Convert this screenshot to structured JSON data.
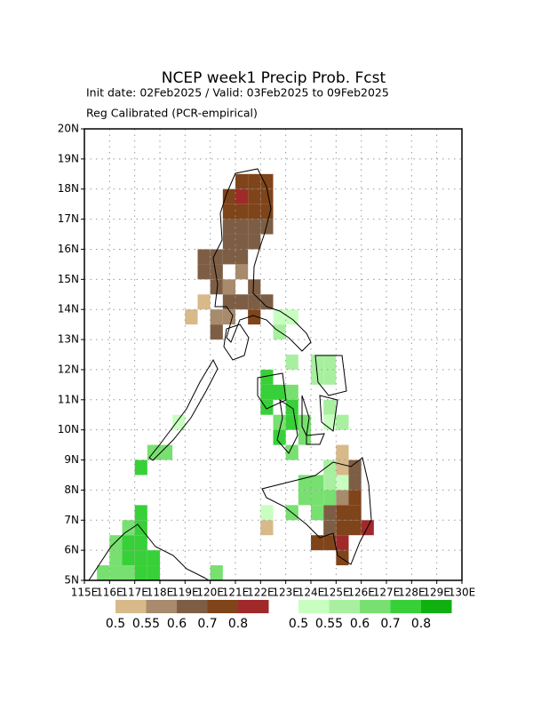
{
  "chart_data": {
    "type": "grid-map",
    "title": "NCEP week1 Precip Prob. Fcst",
    "subtitle": "Init date: 02Feb2025 / Valid: 03Feb2025 to 09Feb2025",
    "note": "Reg Calibrated (PCR-empirical)",
    "xlim": [
      115,
      130
    ],
    "xticks": [
      {
        "value": 115,
        "label": "115E"
      },
      {
        "value": 116,
        "label": "116E"
      },
      {
        "value": 117,
        "label": "117E"
      },
      {
        "value": 118,
        "label": "118E"
      },
      {
        "value": 119,
        "label": "119E"
      },
      {
        "value": 120,
        "label": "120E"
      },
      {
        "value": 121,
        "label": "121E"
      },
      {
        "value": 122,
        "label": "122E"
      },
      {
        "value": 123,
        "label": "123E"
      },
      {
        "value": 124,
        "label": "124E"
      },
      {
        "value": 125,
        "label": "125E"
      },
      {
        "value": 126,
        "label": "126E"
      },
      {
        "value": 127,
        "label": "127E"
      },
      {
        "value": 128,
        "label": "128E"
      },
      {
        "value": 129,
        "label": "129E"
      },
      {
        "value": 130,
        "label": "130E"
      }
    ],
    "ylim": [
      5,
      20
    ],
    "yticks": [
      {
        "value": 5,
        "label": "5N"
      },
      {
        "value": 6,
        "label": "6N"
      },
      {
        "value": 7,
        "label": "7N"
      },
      {
        "value": 8,
        "label": "8N"
      },
      {
        "value": 9,
        "label": "9N"
      },
      {
        "value": 10,
        "label": "10N"
      },
      {
        "value": 11,
        "label": "11N"
      },
      {
        "value": 12,
        "label": "12N"
      },
      {
        "value": 13,
        "label": "13N"
      },
      {
        "value": 14,
        "label": "14N"
      },
      {
        "value": 15,
        "label": "15N"
      },
      {
        "value": 16,
        "label": "16N"
      },
      {
        "value": 17,
        "label": "17N"
      },
      {
        "value": 18,
        "label": "18N"
      },
      {
        "value": 19,
        "label": "19N"
      },
      {
        "value": 20,
        "label": "20N"
      }
    ],
    "grid": true,
    "cell_size": 0.5,
    "scales": [
      {
        "colors": [
          "#d7b98a",
          "#a88a6c",
          "#7d5e45",
          "#7f4419",
          "#a02a2a"
        ],
        "ticks": [
          0.5,
          0.55,
          0.6,
          0.7,
          0.8
        ],
        "cells": [
          {
            "lon": 121,
            "lat": 18,
            "value": 0.75
          },
          {
            "lon": 121.5,
            "lat": 18,
            "value": 0.75
          },
          {
            "lon": 122,
            "lat": 18,
            "value": 0.75
          },
          {
            "lon": 120.5,
            "lat": 17.5,
            "value": 0.75
          },
          {
            "lon": 121,
            "lat": 17.5,
            "value": 0.85
          },
          {
            "lon": 121.5,
            "lat": 17.5,
            "value": 0.75
          },
          {
            "lon": 122,
            "lat": 17.5,
            "value": 0.75
          },
          {
            "lon": 120.5,
            "lat": 17,
            "value": 0.75
          },
          {
            "lon": 121,
            "lat": 17,
            "value": 0.75
          },
          {
            "lon": 121.5,
            "lat": 17,
            "value": 0.75
          },
          {
            "lon": 122,
            "lat": 17,
            "value": 0.75
          },
          {
            "lon": 120.5,
            "lat": 16.5,
            "value": 0.65
          },
          {
            "lon": 121,
            "lat": 16.5,
            "value": 0.65
          },
          {
            "lon": 121.5,
            "lat": 16.5,
            "value": 0.65
          },
          {
            "lon": 122,
            "lat": 16.5,
            "value": 0.65
          },
          {
            "lon": 120.5,
            "lat": 16,
            "value": 0.65
          },
          {
            "lon": 121,
            "lat": 16,
            "value": 0.65
          },
          {
            "lon": 121.5,
            "lat": 16,
            "value": 0.65
          },
          {
            "lon": 119.5,
            "lat": 15.5,
            "value": 0.65
          },
          {
            "lon": 120,
            "lat": 15.5,
            "value": 0.65
          },
          {
            "lon": 120.5,
            "lat": 15.5,
            "value": 0.65
          },
          {
            "lon": 121,
            "lat": 15.5,
            "value": 0.65
          },
          {
            "lon": 119.5,
            "lat": 15,
            "value": 0.65
          },
          {
            "lon": 120,
            "lat": 15,
            "value": 0.65
          },
          {
            "lon": 121,
            "lat": 15,
            "value": 0.55
          },
          {
            "lon": 120,
            "lat": 14.5,
            "value": 0.65
          },
          {
            "lon": 120.5,
            "lat": 14.5,
            "value": 0.55
          },
          {
            "lon": 121.5,
            "lat": 14.5,
            "value": 0.65
          },
          {
            "lon": 119.5,
            "lat": 14,
            "value": 0.52
          },
          {
            "lon": 120.5,
            "lat": 14,
            "value": 0.65
          },
          {
            "lon": 121,
            "lat": 14,
            "value": 0.65
          },
          {
            "lon": 121.5,
            "lat": 14,
            "value": 0.6
          },
          {
            "lon": 122,
            "lat": 14,
            "value": 0.65
          },
          {
            "lon": 119,
            "lat": 13.5,
            "value": 0.52
          },
          {
            "lon": 120,
            "lat": 13.5,
            "value": 0.55
          },
          {
            "lon": 120.5,
            "lat": 13.5,
            "value": 0.55
          },
          {
            "lon": 121.5,
            "lat": 13.5,
            "value": 0.75
          },
          {
            "lon": 120,
            "lat": 13,
            "value": 0.6
          },
          {
            "lon": 125,
            "lat": 9,
            "value": 0.52
          },
          {
            "lon": 125,
            "lat": 8.5,
            "value": 0.52
          },
          {
            "lon": 125.5,
            "lat": 8.5,
            "value": 0.65
          },
          {
            "lon": 125.5,
            "lat": 8,
            "value": 0.65
          },
          {
            "lon": 125,
            "lat": 7.5,
            "value": 0.55
          },
          {
            "lon": 125.5,
            "lat": 7.5,
            "value": 0.75
          },
          {
            "lon": 124.5,
            "lat": 7,
            "value": 0.65
          },
          {
            "lon": 125,
            "lat": 7,
            "value": 0.75
          },
          {
            "lon": 125.5,
            "lat": 7,
            "value": 0.75
          },
          {
            "lon": 122,
            "lat": 6.5,
            "value": 0.52
          },
          {
            "lon": 124.5,
            "lat": 6.5,
            "value": 0.65
          },
          {
            "lon": 125,
            "lat": 6.5,
            "value": 0.75
          },
          {
            "lon": 125.5,
            "lat": 6.5,
            "value": 0.75
          },
          {
            "lon": 126,
            "lat": 6.5,
            "value": 0.85
          },
          {
            "lon": 124,
            "lat": 6,
            "value": 0.75
          },
          {
            "lon": 124.5,
            "lat": 6,
            "value": 0.75
          },
          {
            "lon": 125,
            "lat": 6,
            "value": 0.85
          },
          {
            "lon": 125,
            "lat": 5.5,
            "value": 0.75
          }
        ]
      },
      {
        "colors": [
          "#c8ffc0",
          "#a8f0a0",
          "#78e070",
          "#38d038",
          "#10b010"
        ],
        "ticks": [
          0.5,
          0.55,
          0.6,
          0.7,
          0.8
        ],
        "cells": [
          {
            "lon": 122.5,
            "lat": 13.5,
            "value": 0.52
          },
          {
            "lon": 123,
            "lat": 13.5,
            "value": 0.52
          },
          {
            "lon": 122.5,
            "lat": 13,
            "value": 0.57
          },
          {
            "lon": 123,
            "lat": 12,
            "value": 0.57
          },
          {
            "lon": 124,
            "lat": 12,
            "value": 0.57
          },
          {
            "lon": 124.5,
            "lat": 12,
            "value": 0.57
          },
          {
            "lon": 122,
            "lat": 11.5,
            "value": 0.75
          },
          {
            "lon": 124,
            "lat": 11.5,
            "value": 0.57
          },
          {
            "lon": 124.5,
            "lat": 11.5,
            "value": 0.57
          },
          {
            "lon": 122,
            "lat": 11,
            "value": 0.75
          },
          {
            "lon": 122.5,
            "lat": 11,
            "value": 0.75
          },
          {
            "lon": 123,
            "lat": 11,
            "value": 0.6
          },
          {
            "lon": 122,
            "lat": 10.5,
            "value": 0.75
          },
          {
            "lon": 123,
            "lat": 10.5,
            "value": 0.75
          },
          {
            "lon": 124.5,
            "lat": 10.5,
            "value": 0.57
          },
          {
            "lon": 122.5,
            "lat": 10,
            "value": 0.6
          },
          {
            "lon": 123,
            "lat": 10,
            "value": 0.75
          },
          {
            "lon": 123.5,
            "lat": 10,
            "value": 0.65
          },
          {
            "lon": 124.5,
            "lat": 10,
            "value": 0.52
          },
          {
            "lon": 125,
            "lat": 10,
            "value": 0.57
          },
          {
            "lon": 122.5,
            "lat": 9.5,
            "value": 0.75
          },
          {
            "lon": 123.5,
            "lat": 9.5,
            "value": 0.6
          },
          {
            "lon": 123,
            "lat": 9,
            "value": 0.6
          },
          {
            "lon": 118.5,
            "lat": 10,
            "value": 0.52
          },
          {
            "lon": 124.5,
            "lat": 8.5,
            "value": 0.57
          },
          {
            "lon": 123.5,
            "lat": 8,
            "value": 0.6
          },
          {
            "lon": 124,
            "lat": 8,
            "value": 0.6
          },
          {
            "lon": 124.5,
            "lat": 8,
            "value": 0.57
          },
          {
            "lon": 125,
            "lat": 8,
            "value": 0.52
          },
          {
            "lon": 123.5,
            "lat": 7.5,
            "value": 0.6
          },
          {
            "lon": 124,
            "lat": 7.5,
            "value": 0.6
          },
          {
            "lon": 124.5,
            "lat": 7.5,
            "value": 0.65
          },
          {
            "lon": 123,
            "lat": 7,
            "value": 0.6
          },
          {
            "lon": 124,
            "lat": 7,
            "value": 0.6
          },
          {
            "lon": 122,
            "lat": 7,
            "value": 0.52
          },
          {
            "lon": 117.5,
            "lat": 9,
            "value": 0.65
          },
          {
            "lon": 118,
            "lat": 9,
            "value": 0.65
          },
          {
            "lon": 117,
            "lat": 8.5,
            "value": 0.75
          },
          {
            "lon": 117,
            "lat": 7,
            "value": 0.7
          },
          {
            "lon": 116.5,
            "lat": 6.5,
            "value": 0.65
          },
          {
            "lon": 117,
            "lat": 6.5,
            "value": 0.75
          },
          {
            "lon": 116,
            "lat": 6,
            "value": 0.65
          },
          {
            "lon": 116.5,
            "lat": 6,
            "value": 0.75
          },
          {
            "lon": 117,
            "lat": 6,
            "value": 0.75
          },
          {
            "lon": 116,
            "lat": 5.5,
            "value": 0.65
          },
          {
            "lon": 116.5,
            "lat": 5.5,
            "value": 0.75
          },
          {
            "lon": 117,
            "lat": 5.5,
            "value": 0.75
          },
          {
            "lon": 117.5,
            "lat": 5.5,
            "value": 0.75
          },
          {
            "lon": 115.5,
            "lat": 5,
            "value": 0.65
          },
          {
            "lon": 116,
            "lat": 5,
            "value": 0.65
          },
          {
            "lon": 116.5,
            "lat": 5,
            "value": 0.65
          },
          {
            "lon": 117,
            "lat": 5,
            "value": 0.75
          },
          {
            "lon": 117.5,
            "lat": 5,
            "value": 0.75
          },
          {
            "lon": 120,
            "lat": 5,
            "value": 0.6
          }
        ]
      }
    ]
  }
}
